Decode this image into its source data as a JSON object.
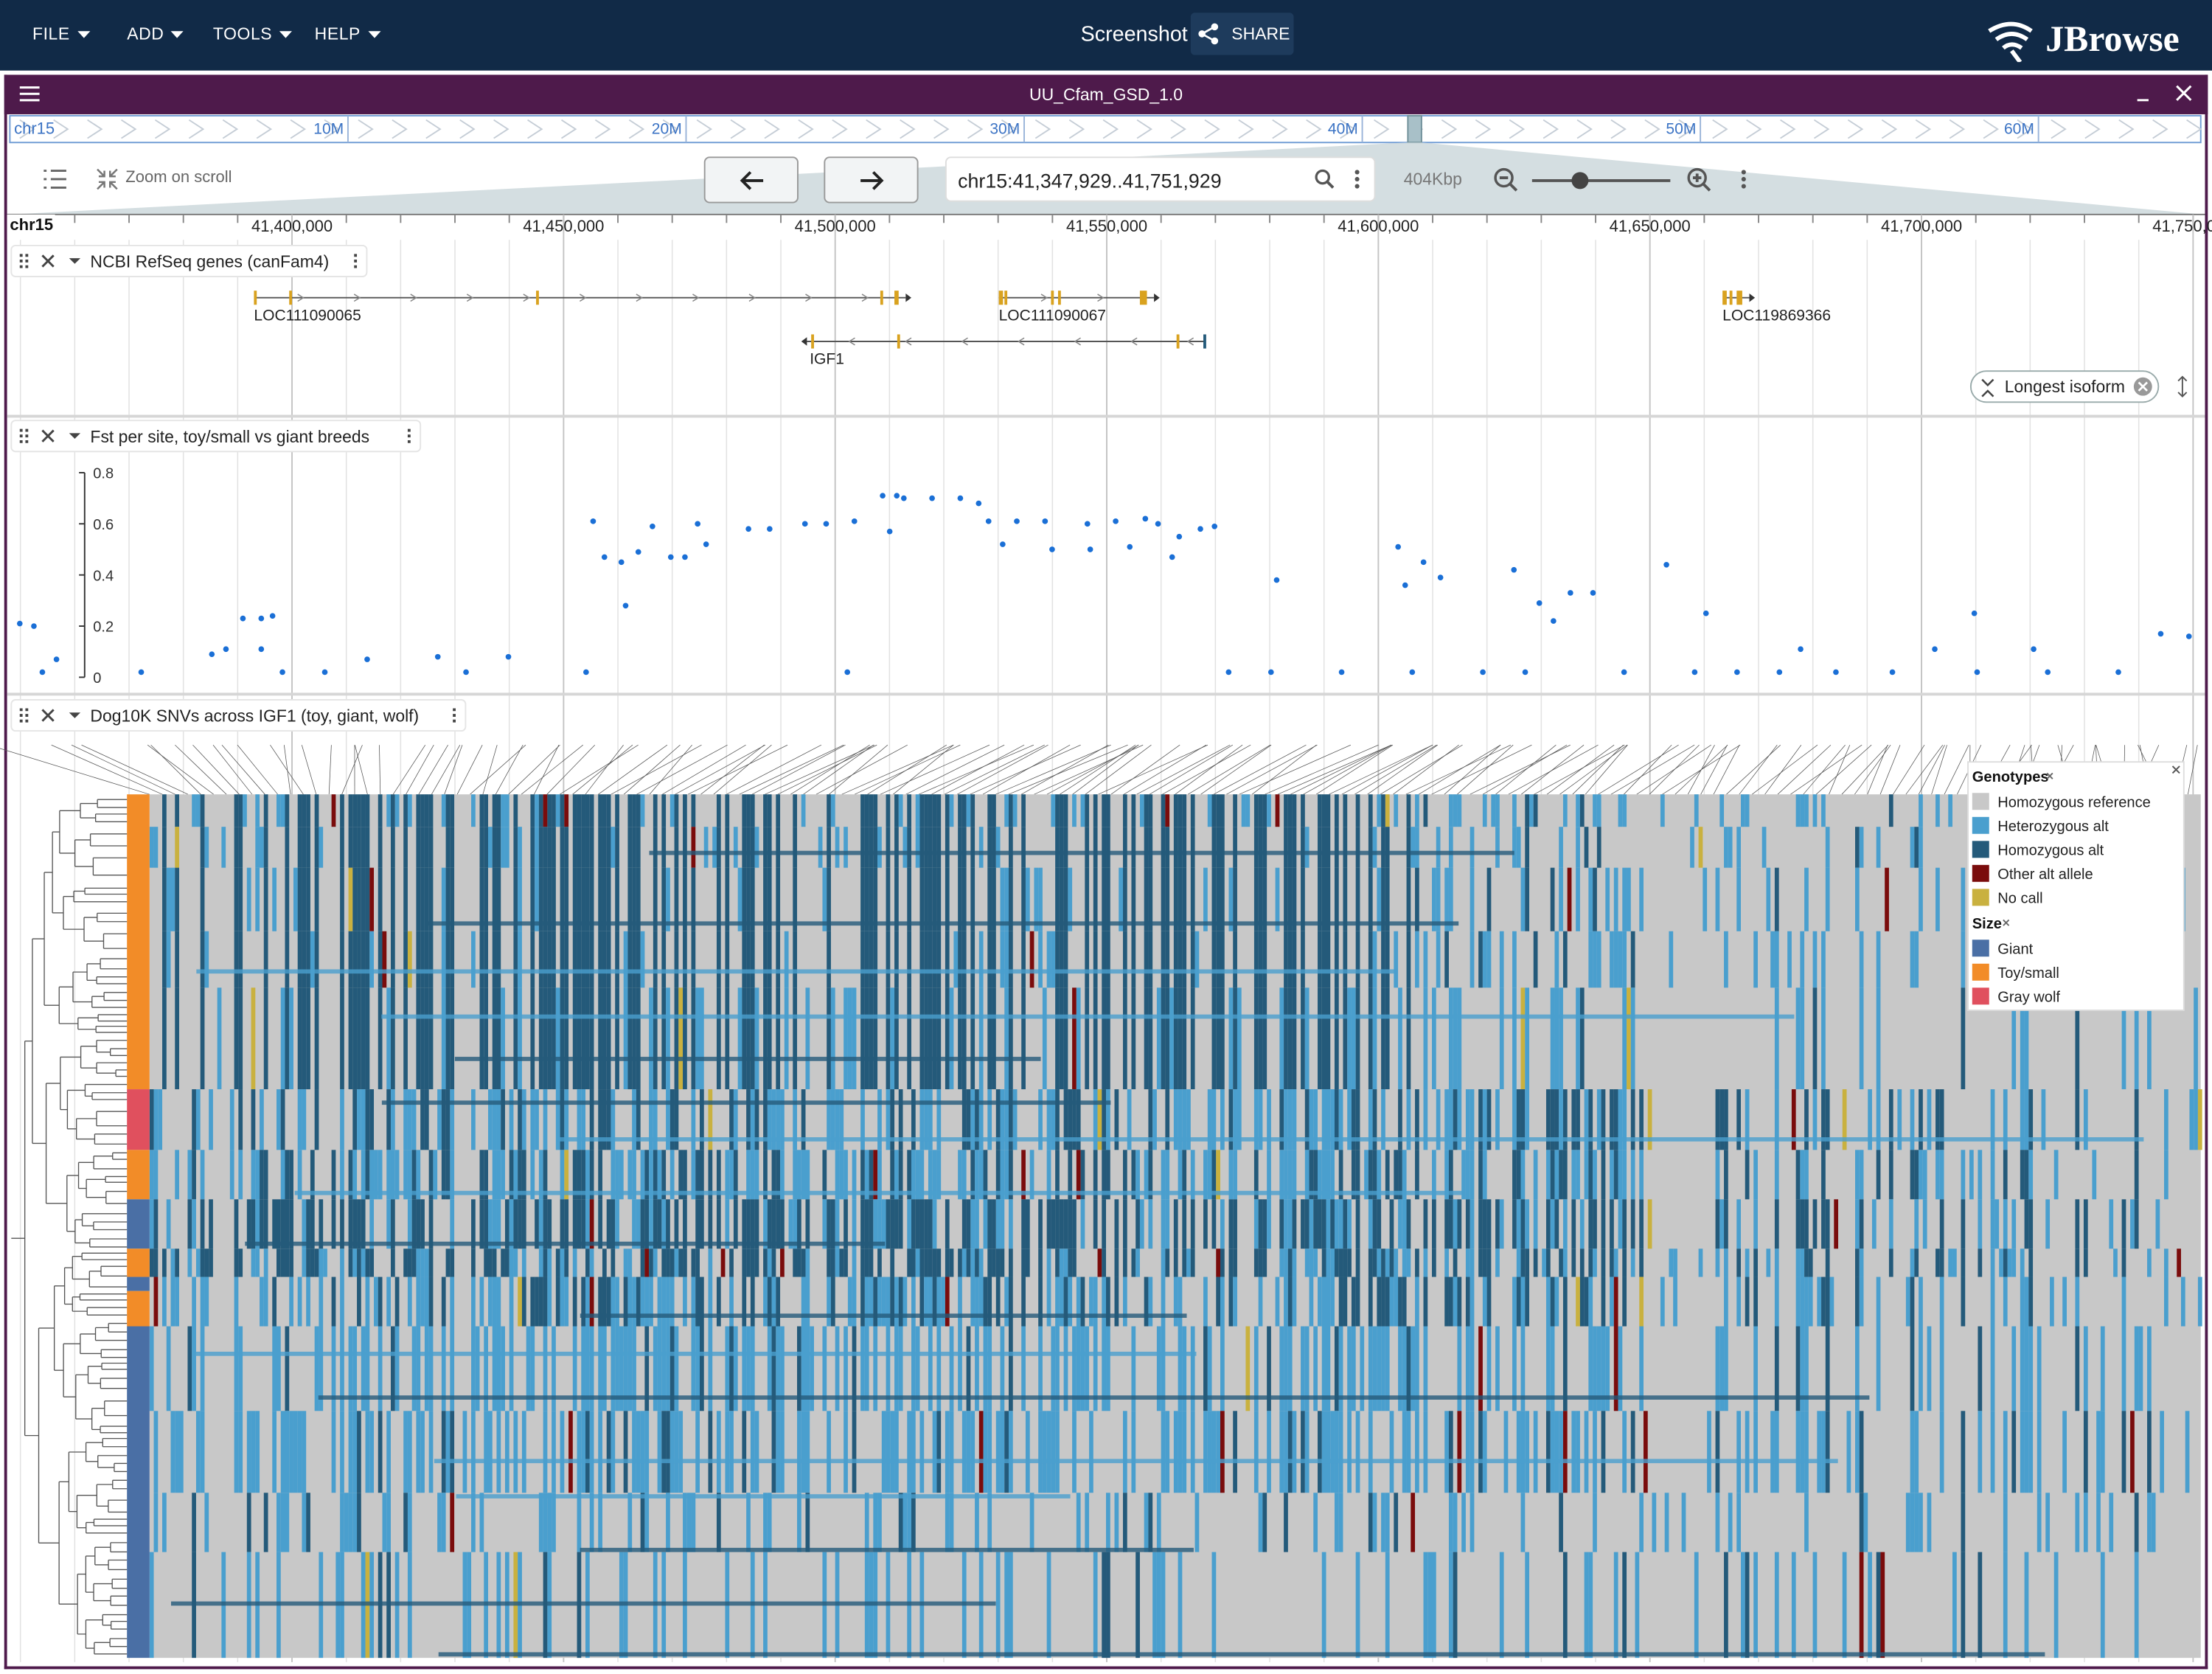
{
  "menu": [
    "FILE",
    "ADD",
    "TOOLS",
    "HELP"
  ],
  "header": {
    "title": "Screenshot",
    "share": "SHARE",
    "brand": "JBrowse"
  },
  "view": {
    "assembly": "UU_Cfam_GSD_1.0",
    "zoom_on_scroll": "Zoom on scroll",
    "location": "chr15:41,347,929..41,751,929",
    "span": "404Kbp"
  },
  "overview": {
    "chrom": "chr15",
    "xlim": [
      0,
      64800000
    ],
    "ticks": [
      {
        "value": 10000000,
        "label": "10M"
      },
      {
        "value": 20000000,
        "label": "20M"
      },
      {
        "value": 30000000,
        "label": "30M"
      },
      {
        "value": 40000000,
        "label": "40M"
      },
      {
        "value": 50000000,
        "label": "50M"
      },
      {
        "value": 60000000,
        "label": "60M"
      }
    ]
  },
  "ruler": {
    "chrom": "chr15"
  },
  "genes_track": {
    "name": "NCBI RefSeq genes (canFam4)",
    "genes": [
      "LOC111090065",
      "LOC111090067",
      "LOC119869366",
      "IGF1"
    ],
    "isoform_button": "Longest isoform"
  },
  "chart_data": {
    "type": "scatter",
    "title": "Fst per site, toy/small vs giant breeds",
    "color": "#1a6fd6",
    "xlim": [
      41347929,
      41751929
    ],
    "xticks": [
      {
        "value": 41400000,
        "label": "41,400,000"
      },
      {
        "value": 41450000,
        "label": "41,450,000"
      },
      {
        "value": 41500000,
        "label": "41,500,000"
      },
      {
        "value": 41550000,
        "label": "41,550,000"
      },
      {
        "value": 41600000,
        "label": "41,600,000"
      },
      {
        "value": 41650000,
        "label": "41,650,000"
      },
      {
        "value": 41700000,
        "label": "41,700,000"
      },
      {
        "value": 41750000,
        "label": "41,750,000"
      }
    ],
    "ylim": [
      0,
      0.8
    ],
    "yticks": [
      0,
      0.2,
      0.4,
      0.6,
      0.8
    ],
    "x": [
      41349880,
      41352480,
      41354040,
      41356640,
      41372240,
      41385240,
      41387840,
      41390960,
      41394340,
      41396420,
      41394340,
      41398240,
      41406040,
      41413840,
      41426840,
      41432040,
      41439840,
      41454140,
      41455440,
      41457520,
      41460640,
      41461420,
      41463760,
      41466360,
      41469740,
      41472340,
      41474680,
      41476240,
      41484040,
      41487940,
      41494440,
      41498340,
      41502240,
      41503540,
      41508740,
      41510040,
      41511340,
      41512640,
      41517840,
      41523040,
      41526420,
      41528240,
      41530840,
      41533440,
      41538640,
      41539940,
      41546440,
      41546960,
      41551640,
      41554240,
      41557100,
      41559440,
      41562040,
      41563340,
      41567240,
      41569840,
      41572440,
      41580240,
      41581280,
      41593240,
      41603640,
      41604940,
      41606240,
      41608320,
      41611440,
      41619240,
      41624960,
      41627040,
      41629640,
      41632240,
      41635360,
      41639520,
      41645240,
      41653040,
      41658240,
      41660320,
      41666040,
      41673840,
      41677740,
      41684240,
      41694640,
      41702440,
      41709720,
      41710240,
      41720640,
      41723240,
      41736240,
      41744040,
      41749240
    ],
    "values": [
      0.21,
      0.2,
      0.02,
      0.07,
      0.02,
      0.09,
      0.11,
      0.23,
      0.23,
      0.24,
      0.11,
      0.02,
      0.02,
      0.07,
      0.08,
      0.02,
      0.08,
      0.02,
      0.61,
      0.47,
      0.45,
      0.28,
      0.49,
      0.59,
      0.47,
      0.47,
      0.6,
      0.52,
      0.58,
      0.58,
      0.6,
      0.6,
      0.02,
      0.61,
      0.71,
      0.57,
      0.71,
      0.7,
      0.7,
      0.7,
      0.68,
      0.61,
      0.52,
      0.61,
      0.61,
      0.5,
      0.6,
      0.5,
      0.61,
      0.51,
      0.62,
      0.6,
      0.47,
      0.55,
      0.58,
      0.59,
      0.02,
      0.02,
      0.38,
      0.02,
      0.51,
      0.36,
      0.02,
      0.45,
      0.39,
      0.02,
      0.42,
      0.02,
      0.29,
      0.22,
      0.33,
      0.33,
      0.02,
      0.44,
      0.02,
      0.25,
      0.02,
      0.02,
      0.11,
      0.02,
      0.02,
      0.11,
      0.25,
      0.02,
      0.11,
      0.02,
      0.02,
      0.17,
      0.16
    ]
  },
  "variants_track": {
    "name": "Dog10K SNVs across IGF1 (toy, giant, wolf)",
    "legend": {
      "genotypes_title": "Genotypes",
      "genotypes": [
        {
          "name": "Homozygous reference",
          "color": "#c8c8c8"
        },
        {
          "name": "Heterozygous alt",
          "color": "#4a9fce"
        },
        {
          "name": "Homozygous alt",
          "color": "#245a7a"
        },
        {
          "name": "Other alt allele",
          "color": "#7a0c0c"
        },
        {
          "name": "No call",
          "color": "#c9b13f"
        }
      ],
      "size_title": "Size",
      "sizes": [
        {
          "name": "Giant",
          "color": "#4a6fa5"
        },
        {
          "name": "Toy/small",
          "color": "#f28c28"
        },
        {
          "name": "Gray wolf",
          "color": "#e0505e"
        }
      ]
    }
  }
}
